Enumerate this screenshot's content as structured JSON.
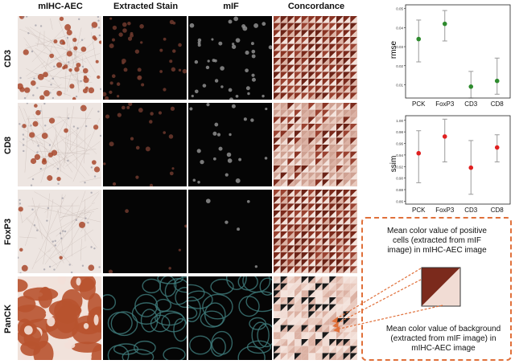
{
  "columns": [
    "mIHC-AEC",
    "Extracted Stain",
    "mIF",
    "Concordance"
  ],
  "rows": [
    "CD3",
    "CD8",
    "FoxP3",
    "PanCK"
  ],
  "plots": {
    "rmse": {
      "ylabel": "rmse",
      "categories": [
        "PCK",
        "FoxP3",
        "CD3",
        "CD8"
      ],
      "yticks": [
        "0.05",
        "0.04",
        "0.03",
        "0.02",
        "0.01"
      ],
      "point_color": "#2e8b2e"
    },
    "ssim": {
      "ylabel": "ssim",
      "categories": [
        "PCK",
        "FoxP3",
        "CD3",
        "CD8"
      ],
      "yticks": [
        "1.00",
        "0.98",
        "0.96",
        "0.94",
        "0.92",
        "0.90",
        "0.88",
        "0.86"
      ],
      "point_color": "#e02020"
    }
  },
  "chart_data": [
    {
      "type": "scatter",
      "ylabel": "rmse",
      "categories": [
        "PCK",
        "FoxP3",
        "CD3",
        "CD8"
      ],
      "values": [
        0.034,
        0.042,
        0.009,
        0.012
      ],
      "error_low": [
        0.022,
        0.033,
        0.003,
        0.005
      ],
      "error_high": [
        0.044,
        0.049,
        0.017,
        0.024
      ],
      "ylim": [
        0.003,
        0.052
      ]
    },
    {
      "type": "scatter",
      "ylabel": "ssim",
      "categories": [
        "PCK",
        "FoxP3",
        "CD3",
        "CD8"
      ],
      "values": [
        0.943,
        0.972,
        0.918,
        0.953
      ],
      "error_low": [
        0.892,
        0.928,
        0.872,
        0.928
      ],
      "error_high": [
        0.982,
        1.002,
        0.965,
        0.975
      ],
      "ylim": [
        0.855,
        1.008
      ]
    }
  ],
  "callout": {
    "top_text": "Mean color value of positive cells (extracted from mIF image) in mIHC-AEC image",
    "bottom_text": "Mean color value of background (extracted from mIF image) in mIHC-AEC image",
    "positive_color": "#7b2a1c",
    "background_color": "#f1dcd4"
  }
}
